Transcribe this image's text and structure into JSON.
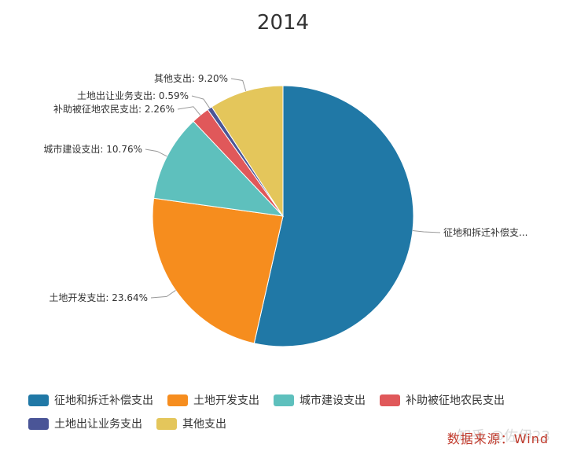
{
  "chart_data": {
    "type": "pie",
    "title": "2014",
    "slices": [
      {
        "name": "征地和拆迁补偿支出",
        "value": 53.55,
        "label": "征地和拆迁补偿支...",
        "color": "#2078a6"
      },
      {
        "name": "土地开发支出",
        "value": 23.64,
        "label": "土地开发支出: 23.64%",
        "color": "#f68d1e"
      },
      {
        "name": "城市建设支出",
        "value": 10.76,
        "label": "城市建设支出: 10.76%",
        "color": "#5ec0bd"
      },
      {
        "name": "补助被征地农民支出",
        "value": 2.26,
        "label": "补助被征地农民支出: 2.26%",
        "color": "#e0585a"
      },
      {
        "name": "土地出让业务支出",
        "value": 0.59,
        "label": "土地出让业务支出: 0.59%",
        "color": "#4a5597"
      },
      {
        "name": "其他支出",
        "value": 9.2,
        "label": "其他支出: 9.20%",
        "color": "#e4c65b"
      }
    ],
    "legend_placement": "bottom"
  },
  "legend_rows": [
    [
      0,
      1,
      2,
      3
    ],
    [
      4,
      5
    ]
  ],
  "source_text": "数据来源：Wind",
  "watermark_text": "知乎 @佐伊23"
}
